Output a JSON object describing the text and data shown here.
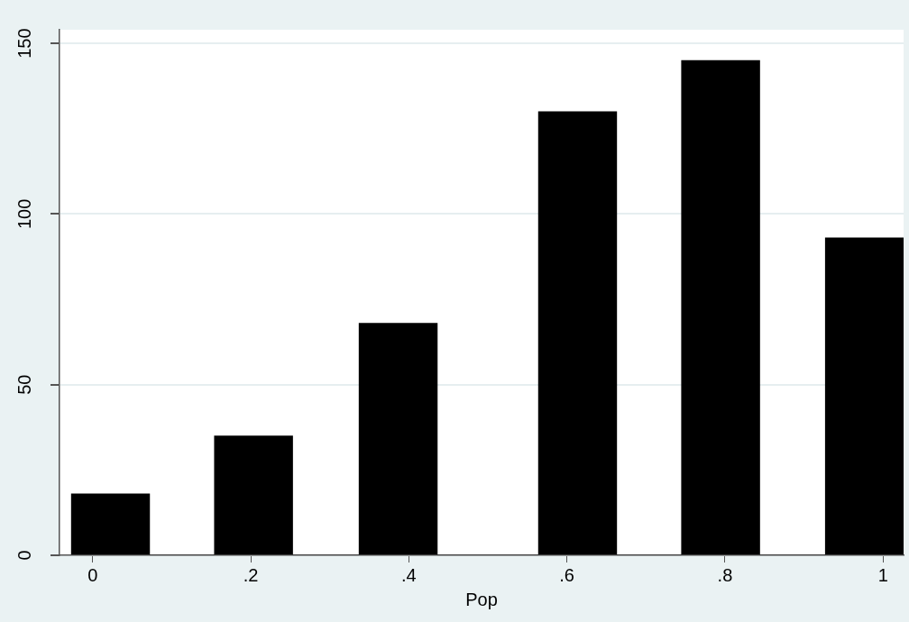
{
  "chart_data": {
    "type": "histogram",
    "xlabel": "Pop",
    "bins": [
      -0.027,
      0.072,
      0.154,
      0.253,
      0.337,
      0.436,
      0.564,
      0.663,
      0.745,
      0.844,
      0.927,
      1.026
    ],
    "values": [
      18,
      0,
      35,
      0,
      68,
      0,
      130,
      0,
      145,
      0,
      93
    ],
    "color": "#000000",
    "xlim": [
      -0.042,
      1.026
    ],
    "xticks": [
      {
        "value": 0,
        "label": "0"
      },
      {
        "value": 0.2,
        "label": ".2"
      },
      {
        "value": 0.4,
        "label": ".4"
      },
      {
        "value": 0.6,
        "label": ".6"
      },
      {
        "value": 0.8,
        "label": ".8"
      },
      {
        "value": 1,
        "label": "1"
      }
    ],
    "ylim": [
      0,
      154
    ],
    "yticks": [
      0,
      50,
      100,
      150
    ],
    "grid": "y"
  }
}
